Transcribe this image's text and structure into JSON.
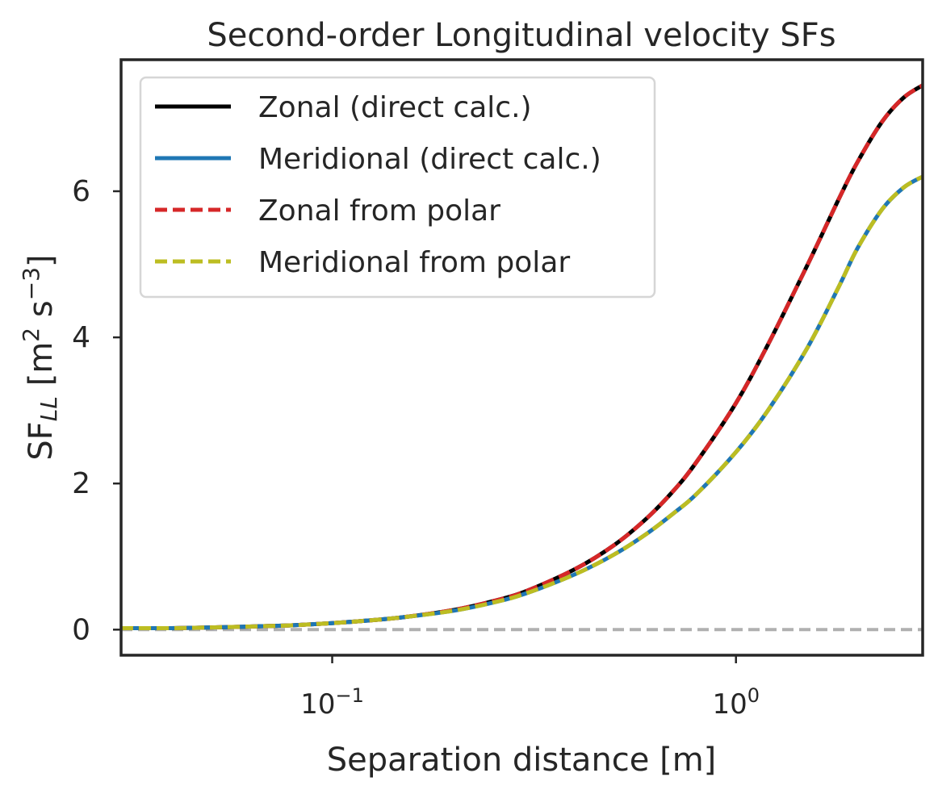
{
  "chart_data": {
    "type": "line",
    "title": "Second-order Longitudinal velocity SFs",
    "xlabel": "Separation distance [m]",
    "ylabel": {
      "prefix": "SF",
      "subscript": "LL",
      "unit_open": " [m",
      "unit_exp1": "2",
      "unit_mid": " s",
      "unit_exp2": "−3",
      "unit_close": "]"
    },
    "xscale": "log",
    "xlim": [
      0.03,
      2.9
    ],
    "ylim": [
      -0.35,
      7.8
    ],
    "grid": false,
    "legend_position": "top-left",
    "x_ticks": [
      {
        "value": 0.1,
        "base": "10",
        "exp": "−1"
      },
      {
        "value": 1,
        "base": "10",
        "exp": "0"
      }
    ],
    "y_ticks": [
      {
        "value": 0,
        "label": "0"
      },
      {
        "value": 2,
        "label": "2"
      },
      {
        "value": 4,
        "label": "4"
      },
      {
        "value": 6,
        "label": "6"
      }
    ],
    "x": [
      0.03,
      0.04,
      0.05,
      0.06,
      0.07,
      0.08,
      0.1,
      0.12,
      0.15,
      0.2,
      0.25,
      0.3,
      0.4,
      0.5,
      0.6,
      0.7,
      0.8,
      1.0,
      1.2,
      1.5,
      1.8,
      2.0,
      2.3,
      2.6,
      2.9
    ],
    "series": [
      {
        "name": "Zonal (direct calc.)",
        "color": "#000000",
        "dash": "solid",
        "values": [
          0.02,
          0.02,
          0.03,
          0.04,
          0.05,
          0.06,
          0.09,
          0.12,
          0.17,
          0.27,
          0.39,
          0.52,
          0.83,
          1.16,
          1.52,
          1.9,
          2.3,
          3.1,
          3.9,
          4.98,
          5.9,
          6.4,
          6.95,
          7.28,
          7.45
        ]
      },
      {
        "name": "Meridional (direct calc.)",
        "color": "#1f77b4",
        "dash": "solid",
        "values": [
          0.02,
          0.02,
          0.03,
          0.04,
          0.05,
          0.06,
          0.09,
          0.12,
          0.17,
          0.26,
          0.37,
          0.49,
          0.76,
          1.03,
          1.31,
          1.59,
          1.86,
          2.43,
          3.0,
          3.85,
          4.7,
          5.22,
          5.75,
          6.05,
          6.2
        ]
      },
      {
        "name": "Zonal from polar",
        "color": "#d62728",
        "dash": "dashed",
        "values": [
          0.02,
          0.02,
          0.03,
          0.04,
          0.05,
          0.06,
          0.09,
          0.12,
          0.17,
          0.27,
          0.39,
          0.52,
          0.83,
          1.16,
          1.52,
          1.9,
          2.3,
          3.1,
          3.9,
          4.98,
          5.9,
          6.4,
          6.95,
          7.28,
          7.45
        ]
      },
      {
        "name": "Meridional from polar",
        "color": "#bcbd22",
        "dash": "dashed",
        "values": [
          0.02,
          0.02,
          0.03,
          0.04,
          0.05,
          0.06,
          0.09,
          0.12,
          0.17,
          0.26,
          0.37,
          0.49,
          0.76,
          1.03,
          1.31,
          1.59,
          1.86,
          2.43,
          3.0,
          3.85,
          4.7,
          5.22,
          5.75,
          6.05,
          6.2
        ]
      }
    ],
    "reference_line": {
      "y": 0,
      "color": "#b0b0b0",
      "dash": "dashed"
    }
  }
}
